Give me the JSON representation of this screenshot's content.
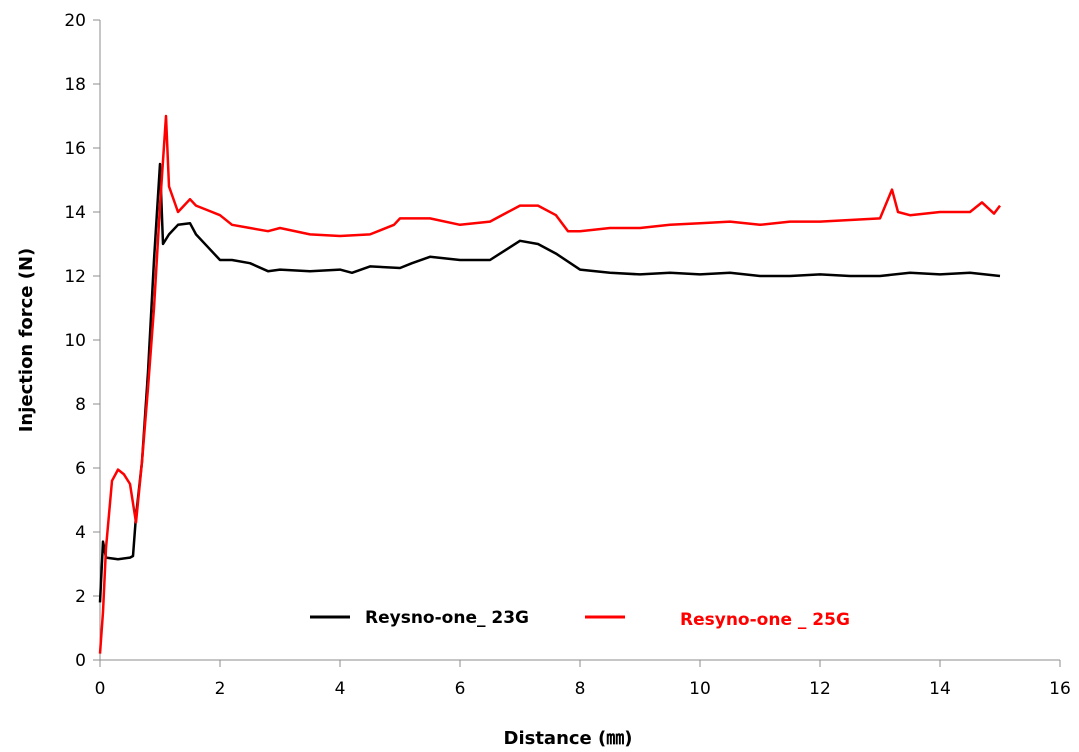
{
  "chart_data": {
    "type": "line",
    "xlabel": "Distance (㎜)",
    "ylabel": "Injection force (N)",
    "xlim": [
      0,
      16
    ],
    "ylim": [
      0,
      20
    ],
    "x_ticks": [
      0,
      2,
      4,
      6,
      8,
      10,
      12,
      14,
      16
    ],
    "y_ticks": [
      0,
      2,
      4,
      6,
      8,
      10,
      12,
      14,
      16,
      18,
      20
    ],
    "grid": false,
    "legend_position": "bottom-center",
    "series": [
      {
        "name": "Reysno-one_ 23G",
        "color": "#000000",
        "points": [
          [
            0,
            1.8
          ],
          [
            0.05,
            3.7
          ],
          [
            0.1,
            3.2
          ],
          [
            0.3,
            3.15
          ],
          [
            0.5,
            3.2
          ],
          [
            0.55,
            3.25
          ],
          [
            0.6,
            4.5
          ],
          [
            0.7,
            6.2
          ],
          [
            0.8,
            9
          ],
          [
            0.9,
            12.5
          ],
          [
            1.0,
            15.5
          ],
          [
            1.05,
            13.0
          ],
          [
            1.15,
            13.3
          ],
          [
            1.3,
            13.6
          ],
          [
            1.5,
            13.65
          ],
          [
            1.6,
            13.3
          ],
          [
            1.8,
            12.9
          ],
          [
            2.0,
            12.5
          ],
          [
            2.2,
            12.5
          ],
          [
            2.5,
            12.4
          ],
          [
            2.8,
            12.15
          ],
          [
            3.0,
            12.2
          ],
          [
            3.5,
            12.15
          ],
          [
            4.0,
            12.2
          ],
          [
            4.2,
            12.1
          ],
          [
            4.5,
            12.3
          ],
          [
            5.0,
            12.25
          ],
          [
            5.2,
            12.4
          ],
          [
            5.5,
            12.6
          ],
          [
            6.0,
            12.5
          ],
          [
            6.5,
            12.5
          ],
          [
            7.0,
            13.1
          ],
          [
            7.3,
            13.0
          ],
          [
            7.6,
            12.7
          ],
          [
            8.0,
            12.2
          ],
          [
            8.5,
            12.1
          ],
          [
            9.0,
            12.05
          ],
          [
            9.5,
            12.1
          ],
          [
            10.0,
            12.05
          ],
          [
            10.5,
            12.1
          ],
          [
            11.0,
            12.0
          ],
          [
            11.5,
            12.0
          ],
          [
            12.0,
            12.05
          ],
          [
            12.5,
            12.0
          ],
          [
            13.0,
            12.0
          ],
          [
            13.5,
            12.1
          ],
          [
            14.0,
            12.05
          ],
          [
            14.5,
            12.1
          ],
          [
            15.0,
            12.0
          ]
        ]
      },
      {
        "name": "Resyno-one _ 25G",
        "color": "#ff0000",
        "points": [
          [
            0,
            0.2
          ],
          [
            0.05,
            1.5
          ],
          [
            0.1,
            3.5
          ],
          [
            0.2,
            5.6
          ],
          [
            0.3,
            5.95
          ],
          [
            0.4,
            5.8
          ],
          [
            0.5,
            5.5
          ],
          [
            0.6,
            4.3
          ],
          [
            0.7,
            6.2
          ],
          [
            0.8,
            8.5
          ],
          [
            0.9,
            11.0
          ],
          [
            1.0,
            14.2
          ],
          [
            1.1,
            17.0
          ],
          [
            1.15,
            14.8
          ],
          [
            1.3,
            14.0
          ],
          [
            1.4,
            14.2
          ],
          [
            1.5,
            14.4
          ],
          [
            1.6,
            14.2
          ],
          [
            1.8,
            14.05
          ],
          [
            2.0,
            13.9
          ],
          [
            2.2,
            13.6
          ],
          [
            2.5,
            13.5
          ],
          [
            2.8,
            13.4
          ],
          [
            3.0,
            13.5
          ],
          [
            3.5,
            13.3
          ],
          [
            4.0,
            13.25
          ],
          [
            4.5,
            13.3
          ],
          [
            4.9,
            13.6
          ],
          [
            5.0,
            13.8
          ],
          [
            5.5,
            13.8
          ],
          [
            6.0,
            13.6
          ],
          [
            6.5,
            13.7
          ],
          [
            7.0,
            14.2
          ],
          [
            7.3,
            14.2
          ],
          [
            7.6,
            13.9
          ],
          [
            7.8,
            13.4
          ],
          [
            8.0,
            13.4
          ],
          [
            8.5,
            13.5
          ],
          [
            9.0,
            13.5
          ],
          [
            9.5,
            13.6
          ],
          [
            10.0,
            13.65
          ],
          [
            10.5,
            13.7
          ],
          [
            11.0,
            13.6
          ],
          [
            11.5,
            13.7
          ],
          [
            12.0,
            13.7
          ],
          [
            12.5,
            13.75
          ],
          [
            13.0,
            13.8
          ],
          [
            13.2,
            14.7
          ],
          [
            13.3,
            14.0
          ],
          [
            13.5,
            13.9
          ],
          [
            14.0,
            14.0
          ],
          [
            14.5,
            14.0
          ],
          [
            14.7,
            14.3
          ],
          [
            14.9,
            13.95
          ],
          [
            15.0,
            14.2
          ]
        ]
      }
    ]
  }
}
